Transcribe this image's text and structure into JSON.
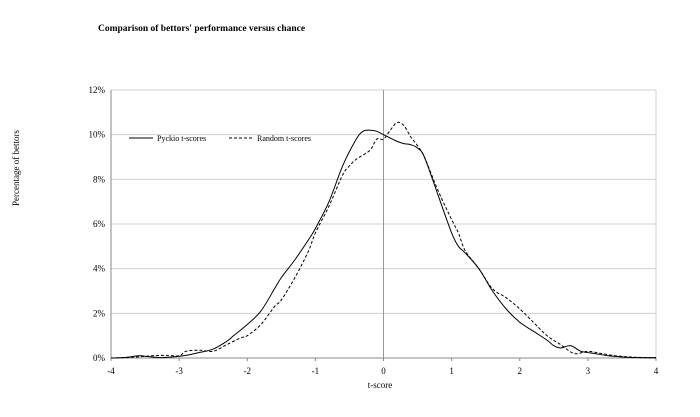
{
  "chart_data": {
    "type": "line",
    "title": "Comparison of bettors' performance versus chance",
    "xlabel": "t-score",
    "ylabel": "Percentage of bettors",
    "xlim": [
      -4,
      4
    ],
    "ylim": [
      0,
      12
    ],
    "x_ticks": [
      "-4",
      "-3",
      "-2",
      "-1",
      "0",
      "1",
      "2",
      "3",
      "4"
    ],
    "y_ticks": [
      "0%",
      "2%",
      "4%",
      "6%",
      "8%",
      "10%",
      "12%"
    ],
    "grid": "horizontal",
    "legend_position": "top-left",
    "series": [
      {
        "name": "Pyckio t-scores",
        "style": "solid",
        "color": "#000000",
        "x": [
          -4.0,
          -3.8,
          -3.6,
          -3.5,
          -3.3,
          -3.1,
          -2.9,
          -2.7,
          -2.5,
          -2.3,
          -2.2,
          -2.0,
          -1.8,
          -1.6,
          -1.5,
          -1.3,
          -1.1,
          -1.0,
          -0.8,
          -0.6,
          -0.4,
          -0.3,
          -0.2,
          -0.1,
          0.0,
          0.1,
          0.2,
          0.3,
          0.4,
          0.5,
          0.6,
          0.8,
          1.0,
          1.1,
          1.2,
          1.4,
          1.6,
          1.8,
          2.0,
          2.2,
          2.4,
          2.5,
          2.6,
          2.75,
          2.9,
          3.1,
          3.3,
          3.5,
          3.7,
          4.0
        ],
        "y": [
          0.0,
          0.02,
          0.1,
          0.08,
          0.02,
          0.05,
          0.12,
          0.25,
          0.4,
          0.75,
          1.0,
          1.5,
          2.1,
          3.1,
          3.6,
          4.4,
          5.3,
          5.8,
          7.0,
          8.6,
          9.8,
          10.15,
          10.2,
          10.15,
          10.0,
          9.85,
          9.7,
          9.6,
          9.55,
          9.4,
          9.0,
          7.3,
          5.6,
          5.0,
          4.7,
          4.0,
          3.0,
          2.2,
          1.6,
          1.2,
          0.8,
          0.55,
          0.45,
          0.55,
          0.3,
          0.2,
          0.1,
          0.05,
          0.02,
          0.02
        ]
      },
      {
        "name": "Random t-scores",
        "style": "dashed",
        "color": "#000000",
        "x": [
          -4.0,
          -3.8,
          -3.6,
          -3.4,
          -3.2,
          -3.0,
          -2.9,
          -2.7,
          -2.5,
          -2.3,
          -2.1,
          -2.0,
          -1.8,
          -1.6,
          -1.5,
          -1.3,
          -1.1,
          -1.0,
          -0.8,
          -0.6,
          -0.5,
          -0.4,
          -0.2,
          -0.1,
          0.0,
          0.1,
          0.2,
          0.3,
          0.4,
          0.5,
          0.6,
          0.8,
          1.0,
          1.1,
          1.2,
          1.4,
          1.6,
          1.8,
          2.0,
          2.2,
          2.4,
          2.6,
          2.8,
          3.0,
          3.2,
          3.4,
          3.6,
          3.8,
          4.0
        ],
        "y": [
          0.0,
          0.02,
          0.05,
          0.1,
          0.12,
          0.1,
          0.3,
          0.35,
          0.3,
          0.6,
          0.9,
          1.0,
          1.5,
          2.3,
          2.6,
          3.6,
          4.8,
          5.6,
          6.8,
          8.2,
          8.6,
          8.9,
          9.3,
          9.8,
          9.8,
          10.2,
          10.55,
          10.4,
          9.9,
          9.5,
          9.0,
          7.5,
          6.2,
          5.6,
          4.8,
          4.0,
          3.1,
          2.7,
          2.2,
          1.6,
          1.0,
          0.6,
          0.2,
          0.3,
          0.2,
          0.1,
          0.05,
          0.02,
          0.0
        ]
      }
    ]
  }
}
